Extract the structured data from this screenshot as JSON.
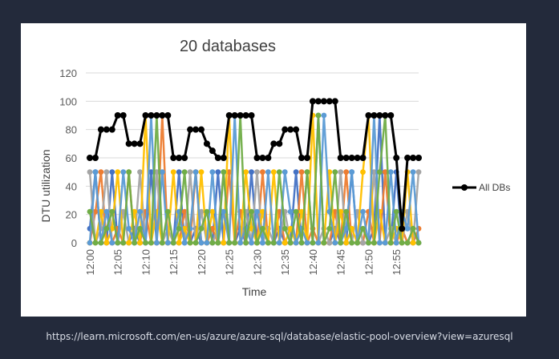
{
  "source_url": "https://learn.microsoft.com/en-us/azure/azure-sql/database/elastic-pool-overview?view=azuresql",
  "colors": {
    "background": "#232a3b",
    "panel": "#ffffff",
    "all_dbs": "#000000",
    "db_palette": [
      "#4472c4",
      "#ed7d31",
      "#a5a5a5",
      "#ffc000",
      "#5b9bd5",
      "#70ad47",
      "#264478",
      "#9e480e",
      "#636363",
      "#43682b"
    ]
  },
  "chart_data": {
    "type": "line",
    "title": "20 databases",
    "xlabel": "Time",
    "ylabel": "DTU utilization",
    "ylim": [
      0,
      120
    ],
    "yticks": [
      0,
      20,
      40,
      60,
      80,
      100,
      120
    ],
    "xtick_labels": [
      "12:00",
      "12:05",
      "12:10",
      "12:15",
      "12:20",
      "12:25",
      "12:30",
      "12:35",
      "12:40",
      "12:45",
      "12:50",
      "12:55"
    ],
    "x_minutes": [
      0,
      1,
      2,
      3,
      4,
      5,
      6,
      7,
      8,
      9,
      10,
      11,
      12,
      13,
      14,
      15,
      16,
      17,
      18,
      19,
      20,
      21,
      22,
      23,
      24,
      25,
      26,
      27,
      28,
      29,
      30,
      31,
      32,
      33,
      34,
      35,
      36,
      37,
      38,
      39,
      40,
      41,
      42,
      43,
      44,
      45,
      46,
      47,
      48,
      49,
      50,
      51,
      52,
      53,
      54,
      55,
      56,
      57,
      58,
      59
    ],
    "grid": true,
    "legend_position": "right",
    "series": [
      {
        "name": "All DBs",
        "values": [
          60,
          60,
          80,
          80,
          80,
          90,
          90,
          70,
          70,
          70,
          90,
          90,
          90,
          90,
          90,
          60,
          60,
          60,
          80,
          80,
          80,
          70,
          65,
          60,
          60,
          90,
          90,
          90,
          90,
          90,
          60,
          60,
          60,
          70,
          70,
          80,
          80,
          80,
          60,
          60,
          100,
          100,
          100,
          100,
          100,
          60,
          60,
          60,
          60,
          60,
          90,
          90,
          90,
          90,
          90,
          60,
          10,
          60,
          60,
          60
        ]
      }
    ],
    "db_series": [
      {
        "values": [
          10,
          50,
          0,
          0,
          50,
          0,
          0,
          0,
          10,
          0,
          0,
          50,
          0,
          0,
          0,
          0,
          50,
          0,
          0,
          10,
          0,
          0,
          0,
          50,
          0,
          0,
          0,
          10,
          0,
          50,
          0,
          0,
          0,
          0,
          10,
          0,
          0,
          50,
          0,
          0,
          0,
          90,
          0,
          0,
          10,
          0,
          0,
          50,
          0,
          0,
          0,
          10,
          90,
          0,
          0,
          50,
          0,
          0,
          10,
          0
        ]
      },
      {
        "values": [
          0,
          22,
          50,
          0,
          0,
          10,
          0,
          50,
          0,
          0,
          22,
          0,
          0,
          90,
          0,
          0,
          0,
          22,
          0,
          50,
          0,
          0,
          10,
          0,
          0,
          50,
          0,
          22,
          0,
          0,
          0,
          50,
          0,
          0,
          22,
          0,
          0,
          0,
          50,
          0,
          10,
          0,
          0,
          0,
          22,
          0,
          50,
          0,
          0,
          0,
          22,
          0,
          0,
          50,
          0,
          0,
          10,
          0,
          0,
          10
        ]
      },
      {
        "values": [
          50,
          0,
          10,
          50,
          0,
          0,
          22,
          0,
          0,
          50,
          0,
          0,
          50,
          0,
          10,
          0,
          0,
          0,
          50,
          0,
          22,
          0,
          0,
          10,
          50,
          0,
          0,
          0,
          22,
          0,
          50,
          0,
          10,
          0,
          0,
          22,
          0,
          0,
          0,
          50,
          0,
          0,
          10,
          0,
          0,
          50,
          0,
          0,
          22,
          0,
          0,
          50,
          0,
          0,
          10,
          0,
          0,
          22,
          0,
          50
        ]
      },
      {
        "values": [
          0,
          0,
          22,
          0,
          10,
          50,
          0,
          0,
          22,
          0,
          90,
          0,
          22,
          0,
          0,
          50,
          0,
          10,
          0,
          0,
          50,
          0,
          22,
          0,
          0,
          90,
          0,
          0,
          50,
          10,
          0,
          22,
          0,
          50,
          0,
          0,
          10,
          0,
          22,
          0,
          90,
          0,
          0,
          50,
          0,
          22,
          0,
          10,
          0,
          50,
          90,
          0,
          22,
          0,
          0,
          10,
          0,
          50,
          0,
          0
        ]
      },
      {
        "values": [
          0,
          50,
          0,
          22,
          0,
          0,
          50,
          10,
          0,
          22,
          0,
          90,
          0,
          50,
          0,
          0,
          22,
          0,
          10,
          50,
          0,
          0,
          50,
          0,
          22,
          0,
          90,
          0,
          10,
          0,
          22,
          0,
          50,
          0,
          0,
          50,
          22,
          0,
          10,
          0,
          0,
          0,
          90,
          22,
          0,
          0,
          10,
          50,
          0,
          22,
          0,
          90,
          0,
          0,
          50,
          0,
          22,
          10,
          50,
          0
        ]
      },
      {
        "values": [
          22,
          0,
          0,
          10,
          22,
          0,
          0,
          50,
          0,
          10,
          0,
          0,
          90,
          0,
          22,
          0,
          10,
          50,
          0,
          0,
          10,
          22,
          0,
          0,
          50,
          0,
          0,
          90,
          0,
          22,
          0,
          10,
          0,
          0,
          50,
          10,
          0,
          22,
          0,
          50,
          0,
          90,
          0,
          10,
          50,
          0,
          22,
          0,
          0,
          10,
          0,
          0,
          50,
          90,
          0,
          22,
          0,
          0,
          10,
          0
        ]
      }
    ]
  }
}
